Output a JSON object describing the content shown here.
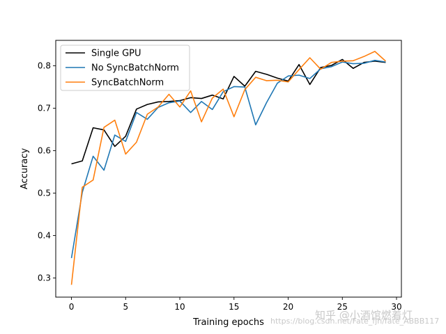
{
  "chart_data": {
    "type": "line",
    "xlabel": "Training epochs",
    "ylabel": "Accuracy",
    "xlim": [
      -1.45,
      30.45
    ],
    "ylim": [
      0.255,
      0.86
    ],
    "xticks": [
      0,
      5,
      10,
      15,
      20,
      25,
      30
    ],
    "yticks": [
      0.3,
      0.4,
      0.5,
      0.6,
      0.7,
      0.8
    ],
    "grid": false,
    "legend_position": "top-left",
    "x": [
      0,
      1,
      2,
      3,
      4,
      5,
      6,
      7,
      8,
      9,
      10,
      11,
      12,
      13,
      14,
      15,
      16,
      17,
      18,
      19,
      20,
      21,
      22,
      23,
      24,
      25,
      26,
      27,
      28,
      29
    ],
    "series": [
      {
        "name": "Single GPU",
        "color": "#000000",
        "values": [
          0.569,
          0.576,
          0.654,
          0.649,
          0.61,
          0.634,
          0.698,
          0.709,
          0.715,
          0.716,
          0.718,
          0.725,
          0.723,
          0.731,
          0.722,
          0.775,
          0.752,
          0.787,
          0.78,
          0.771,
          0.764,
          0.803,
          0.756,
          0.796,
          0.801,
          0.815,
          0.794,
          0.808,
          0.811,
          0.808
        ]
      },
      {
        "name": "No SyncBatchNorm",
        "color": "#1f77b4",
        "values": [
          0.347,
          0.502,
          0.587,
          0.554,
          0.637,
          0.622,
          0.69,
          0.674,
          0.702,
          0.713,
          0.717,
          0.69,
          0.716,
          0.697,
          0.739,
          0.751,
          0.75,
          0.661,
          0.713,
          0.759,
          0.776,
          0.778,
          0.77,
          0.793,
          0.798,
          0.809,
          0.805,
          0.806,
          0.813,
          0.809
        ]
      },
      {
        "name": "SyncBatchNorm",
        "color": "#ff7f0e",
        "values": [
          0.284,
          0.514,
          0.531,
          0.655,
          0.672,
          0.592,
          0.62,
          0.686,
          0.703,
          0.733,
          0.703,
          0.741,
          0.668,
          0.724,
          0.745,
          0.68,
          0.744,
          0.773,
          0.765,
          0.766,
          0.762,
          0.791,
          0.819,
          0.792,
          0.808,
          0.811,
          0.812,
          0.822,
          0.834,
          0.811
        ]
      }
    ]
  },
  "watermark": {
    "text_zh": "知乎 @小酒馆燃着灯",
    "text_url": "https://blog.csdn.net/Fate_fjh/fate_ABBB117"
  }
}
